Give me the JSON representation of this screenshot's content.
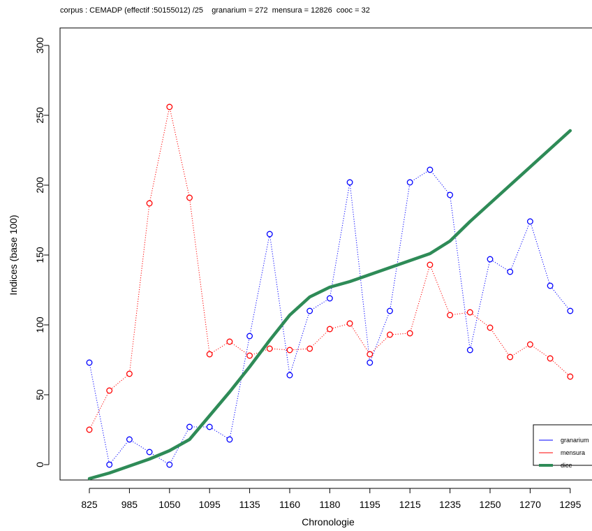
{
  "header": {
    "title": "corpus : CEMADP (effectif :50155012) /25    granarium = 272  mensura = 12826  cooc = 32"
  },
  "chart_data": {
    "type": "line",
    "xlabel": "Chronologie",
    "ylabel": "Indices (base 100)",
    "ylim": [
      -10,
      310
    ],
    "y_ticks": [
      0,
      50,
      100,
      150,
      200,
      250,
      300
    ],
    "x_tick_labels": [
      "825",
      "985",
      "1050",
      "1095",
      "1135",
      "1160",
      "1180",
      "1195",
      "1215",
      "1235",
      "1250",
      "1270",
      "1295"
    ],
    "x_count": 25,
    "x_tick_index": [
      0,
      2,
      4,
      6,
      8,
      10,
      12,
      14,
      16,
      18,
      20,
      22,
      24
    ],
    "legend_position": "bottom-right",
    "series": [
      {
        "name": "granarium",
        "color": "#0000ff",
        "style": "dotted-points",
        "values": [
          73,
          0,
          18,
          9,
          0,
          27,
          27,
          18,
          92,
          165,
          64,
          110,
          119,
          202,
          73,
          110,
          202,
          211,
          193,
          82,
          147,
          138,
          174,
          128,
          110
        ]
      },
      {
        "name": "mensura",
        "color": "#ff0000",
        "style": "dotted-points",
        "values": [
          25,
          53,
          65,
          187,
          256,
          191,
          79,
          88,
          78,
          83,
          82,
          83,
          97,
          101,
          79,
          93,
          94,
          143,
          107,
          109,
          98,
          77,
          86,
          76,
          63
        ]
      },
      {
        "name": "dice",
        "color": "#2e8b57",
        "style": "thick-line",
        "values": [
          -10,
          -6,
          -1,
          4,
          10,
          18,
          35,
          52,
          70,
          89,
          107,
          120,
          127,
          131,
          136,
          141,
          146,
          151,
          160,
          174,
          187,
          200,
          213,
          226,
          239
        ]
      }
    ]
  }
}
